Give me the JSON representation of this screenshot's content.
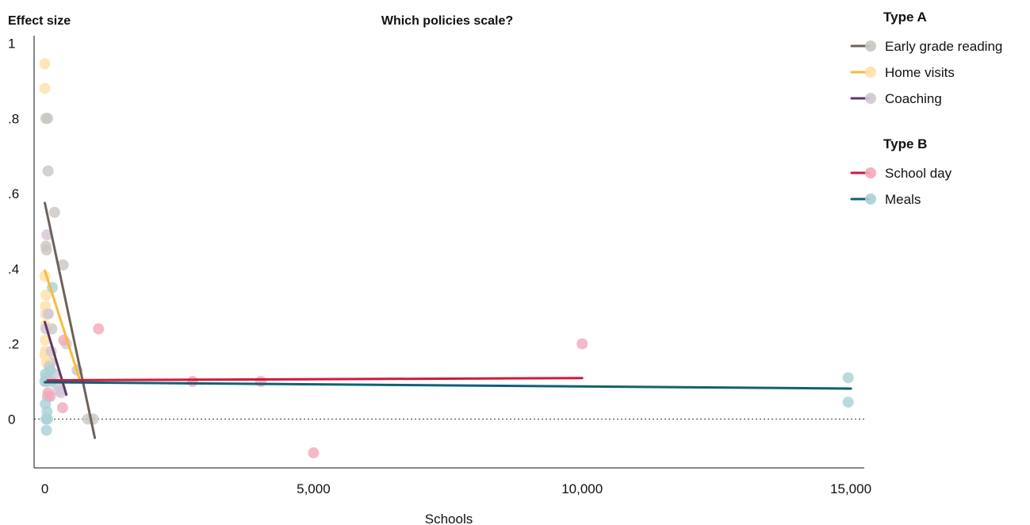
{
  "chart_data": {
    "type": "scatter",
    "title": "Which policies scale?",
    "ylabel": "Effect size",
    "xlabel": "Schools",
    "xlim": [
      -200,
      15250
    ],
    "ylim": [
      -0.13,
      1.02
    ],
    "x_ticks": [
      0,
      5000,
      10000,
      15000
    ],
    "x_tick_labels": [
      "0",
      "5,000",
      "10,000",
      "15,000"
    ],
    "y_ticks": [
      0,
      0.2,
      0.4,
      0.6,
      0.8,
      1
    ],
    "y_tick_labels": [
      "0",
      ".2",
      ".4",
      ".6",
      ".8",
      "1"
    ],
    "reference_line": {
      "y": 0,
      "style": "dotted"
    },
    "legend_groups": [
      {
        "title": "Type A",
        "series": [
          "Early grade reading",
          "Home visits",
          "Coaching"
        ]
      },
      {
        "title": "Type B",
        "series": [
          "School day",
          "Meals"
        ]
      }
    ],
    "series": [
      {
        "name": "Early grade reading",
        "color": "#6b625b",
        "dot_color": "#c9c6c2",
        "points": [
          [
            20,
            0.8
          ],
          [
            50,
            0.8
          ],
          [
            60,
            0.66
          ],
          [
            180,
            0.55
          ],
          [
            340,
            0.41
          ],
          [
            20,
            0.46
          ],
          [
            30,
            0.45
          ],
          [
            130,
            0.24
          ],
          [
            110,
            0.15
          ],
          [
            600,
            0.13
          ],
          [
            800,
            0.0
          ],
          [
            900,
            0.0
          ],
          [
            60,
            0.28
          ]
        ],
        "fit": [
          [
            0,
            0.575
          ],
          [
            930,
            -0.05
          ]
        ]
      },
      {
        "name": "Home visits",
        "color": "#f6bc3d",
        "dot_color": "#fde1a6",
        "points": [
          [
            0,
            0.945
          ],
          [
            0,
            0.88
          ],
          [
            0,
            0.38
          ],
          [
            20,
            0.33
          ],
          [
            10,
            0.3
          ],
          [
            10,
            0.28
          ],
          [
            10,
            0.25
          ],
          [
            10,
            0.21
          ],
          [
            10,
            0.18
          ],
          [
            0,
            0.17
          ],
          [
            30,
            0.15
          ]
        ],
        "fit": [
          [
            0,
            0.395
          ],
          [
            660,
            0.1
          ]
        ]
      },
      {
        "name": "Coaching",
        "color": "#5a3a63",
        "dot_color": "#d4c6d6",
        "points": [
          [
            40,
            0.49
          ],
          [
            60,
            0.28
          ],
          [
            120,
            0.18
          ],
          [
            180,
            0.12
          ],
          [
            230,
            0.09
          ],
          [
            260,
            0.075
          ],
          [
            300,
            0.07
          ],
          [
            400,
            0.2
          ],
          [
            80,
            0.14
          ],
          [
            20,
            0.24
          ]
        ],
        "fit": [
          [
            0,
            0.258
          ],
          [
            400,
            0.065
          ]
        ]
      },
      {
        "name": "School day",
        "color": "#d6163f",
        "dot_color": "#f3a9b9",
        "points": [
          [
            1000,
            0.24
          ],
          [
            10000,
            0.2
          ],
          [
            2750,
            0.1
          ],
          [
            4020,
            0.1
          ],
          [
            5000,
            -0.09
          ],
          [
            350,
            0.21
          ],
          [
            330,
            0.03
          ],
          [
            100,
            0.06
          ],
          [
            50,
            0.06
          ],
          [
            60,
            0.07
          ]
        ],
        "fit": [
          [
            50,
            0.103
          ],
          [
            10000,
            0.109
          ]
        ]
      },
      {
        "name": "Meals",
        "color": "#0e6273",
        "dot_color": "#a9d2d6",
        "points": [
          [
            10,
            0.12
          ],
          [
            20,
            0.11
          ],
          [
            0,
            0.1
          ],
          [
            30,
            0.1
          ],
          [
            10,
            0.04
          ],
          [
            40,
            0.02
          ],
          [
            20,
            0.0
          ],
          [
            50,
            0.0
          ],
          [
            30,
            -0.03
          ],
          [
            140,
            0.35
          ],
          [
            100,
            0.13
          ],
          [
            120,
            0.1
          ],
          [
            14950,
            0.11
          ],
          [
            14950,
            0.045
          ]
        ],
        "fit": [
          [
            0,
            0.098
          ],
          [
            15000,
            0.081
          ]
        ]
      }
    ]
  }
}
